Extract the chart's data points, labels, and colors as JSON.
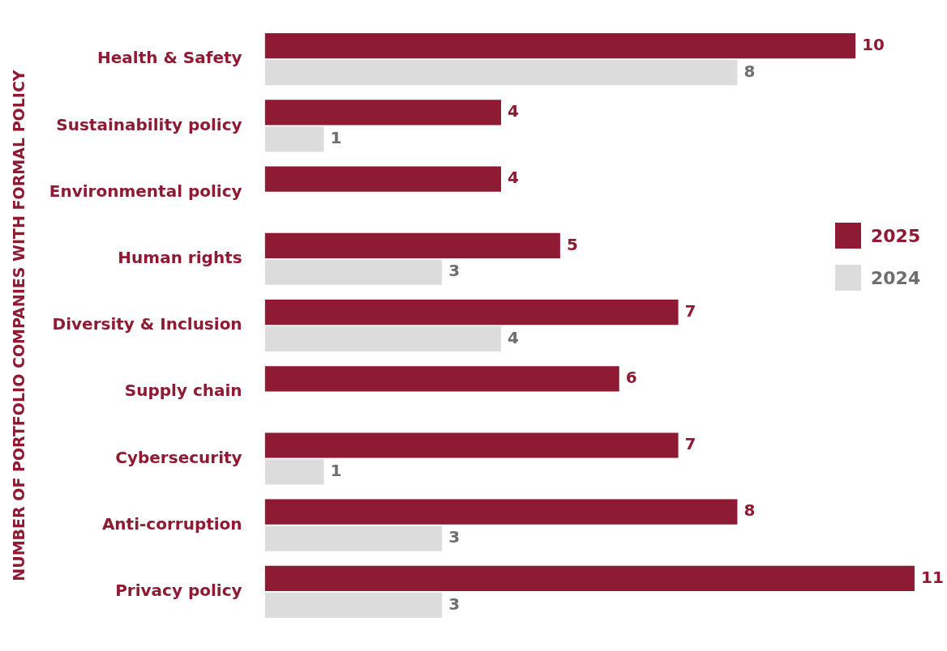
{
  "chart_data": {
    "type": "bar",
    "orientation": "horizontal",
    "ylabel": "NUMBER OF PORTFOLIO COMPANIES WITH FORMAL POLICY",
    "categories": [
      "Health & Safety",
      "Sustainability policy",
      "Environmental policy",
      "Human rights",
      "Diversity & Inclusion",
      "Supply chain",
      "Cybersecurity",
      "Anti-corruption",
      "Privacy policy"
    ],
    "series": [
      {
        "name": "2025",
        "color": "#8f1a33",
        "values": [
          10,
          4,
          4,
          5,
          7,
          6,
          7,
          8,
          11
        ]
      },
      {
        "name": "2024",
        "color": "#dcdcdc",
        "values": [
          8,
          1,
          null,
          3,
          4,
          null,
          1,
          3,
          3
        ]
      }
    ],
    "xlim": [
      0,
      11
    ],
    "tick_labels": "y",
    "legend": "right",
    "data_labels": true
  }
}
